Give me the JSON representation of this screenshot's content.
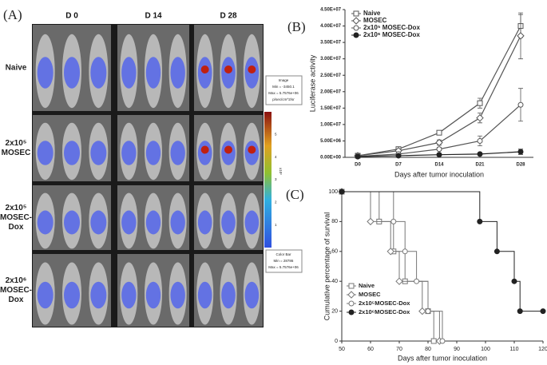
{
  "panel_a": {
    "label": "(A)",
    "columns": [
      "D 0",
      "D 14",
      "D 28"
    ],
    "rows": [
      [
        "Naive"
      ],
      [
        "2x10⁵",
        "MOSEC"
      ],
      [
        "2x10⁵",
        "MOSEC-",
        "Dox"
      ],
      [
        "2x10⁶",
        "MOSEC-",
        "Dox"
      ]
    ],
    "image_legend": [
      "Image",
      "Min = -3450.1",
      "Max = 5.7576e+06",
      "p/sec/cm^2/sr"
    ],
    "colorbar_ticks": [
      1,
      2,
      3,
      4,
      5
    ],
    "colorbar_unit": "x10⁶",
    "colorbar_legend": [
      "Color Bar",
      "Min = 28786",
      "Max = 5.7576e+06"
    ]
  },
  "chart_data": [
    {
      "type": "line",
      "panel_label": "(B)",
      "categories": [
        "D0",
        "D7",
        "D14",
        "D21",
        "D28"
      ],
      "series": [
        {
          "name": "Naive",
          "color": "#555555",
          "marker": "square",
          "values": [
            500000,
            2500000,
            7500000,
            16500000,
            40000000
          ],
          "errors": [
            200000,
            500000,
            600000,
            1500000,
            3500000
          ]
        },
        {
          "name": "MOSEC",
          "color": "#555555",
          "marker": "diamond",
          "values": [
            500000,
            2000000,
            4500000,
            12000000,
            37000000
          ],
          "errors": [
            200000,
            400000,
            800000,
            1500000,
            7000000
          ]
        },
        {
          "name": "2x10⁵ MOSEC-Dox",
          "color": "#555555",
          "marker": "circle",
          "values": [
            300000,
            1000000,
            2500000,
            5000000,
            16000000
          ],
          "errors": [
            100000,
            300000,
            500000,
            1500000,
            5000000
          ]
        },
        {
          "name": "2x10⁶ MOSEC-Dox",
          "color": "#222222",
          "marker": "filled",
          "values": [
            200000,
            500000,
            800000,
            1000000,
            1700000
          ],
          "errors": [
            100000,
            100000,
            200000,
            300000,
            800000
          ]
        }
      ],
      "ylim": [
        0,
        45000000
      ],
      "yticks": [
        {
          "value": 0,
          "label": "0.00E+00"
        },
        {
          "value": 5000000,
          "label": "5.00E+06"
        },
        {
          "value": 10000000,
          "label": "1.00E+07"
        },
        {
          "value": 15000000,
          "label": "1.50E+07"
        },
        {
          "value": 20000000,
          "label": "2.00E+07"
        },
        {
          "value": 25000000,
          "label": "2.50E+07"
        },
        {
          "value": 30000000,
          "label": "3.00E+07"
        },
        {
          "value": 35000000,
          "label": "3.50E+07"
        },
        {
          "value": 40000000,
          "label": "4.00E+07"
        },
        {
          "value": 45000000,
          "label": "4.50E+07"
        }
      ],
      "ylabel": "Luciferase activity",
      "xlabel": "Days after tumor inoculation"
    },
    {
      "type": "step",
      "panel_label": "(C)",
      "series": [
        {
          "name": "Naive",
          "color": "#777777",
          "marker": "square",
          "x": [
            50,
            63,
            68,
            72,
            80,
            82
          ],
          "values": [
            100,
            80,
            60,
            40,
            20,
            0
          ]
        },
        {
          "name": "MOSEC",
          "color": "#777777",
          "marker": "diamond",
          "x": [
            50,
            60,
            67,
            70,
            78,
            84
          ],
          "values": [
            100,
            80,
            60,
            40,
            20,
            0
          ]
        },
        {
          "name": "2x10⁵MOSEC-Dox",
          "color": "#777777",
          "marker": "circle",
          "x": [
            50,
            68,
            72,
            76,
            80,
            85
          ],
          "values": [
            100,
            80,
            60,
            40,
            20,
            0
          ]
        },
        {
          "name": "2x10⁶MOSEC-Dox",
          "color": "#222222",
          "marker": "filled",
          "x": [
            50,
            98,
            104,
            110,
            112,
            120
          ],
          "values": [
            100,
            80,
            60,
            40,
            20,
            20
          ]
        }
      ],
      "xlim": [
        50,
        120
      ],
      "xticks": [
        50,
        60,
        70,
        80,
        90,
        100,
        110,
        120
      ],
      "ylim": [
        0,
        100
      ],
      "yticks": [
        0,
        20,
        40,
        60,
        80,
        100
      ],
      "ylabel": "Cumulative percentage of survival",
      "xlabel": "Days after tumor inoculation"
    }
  ]
}
